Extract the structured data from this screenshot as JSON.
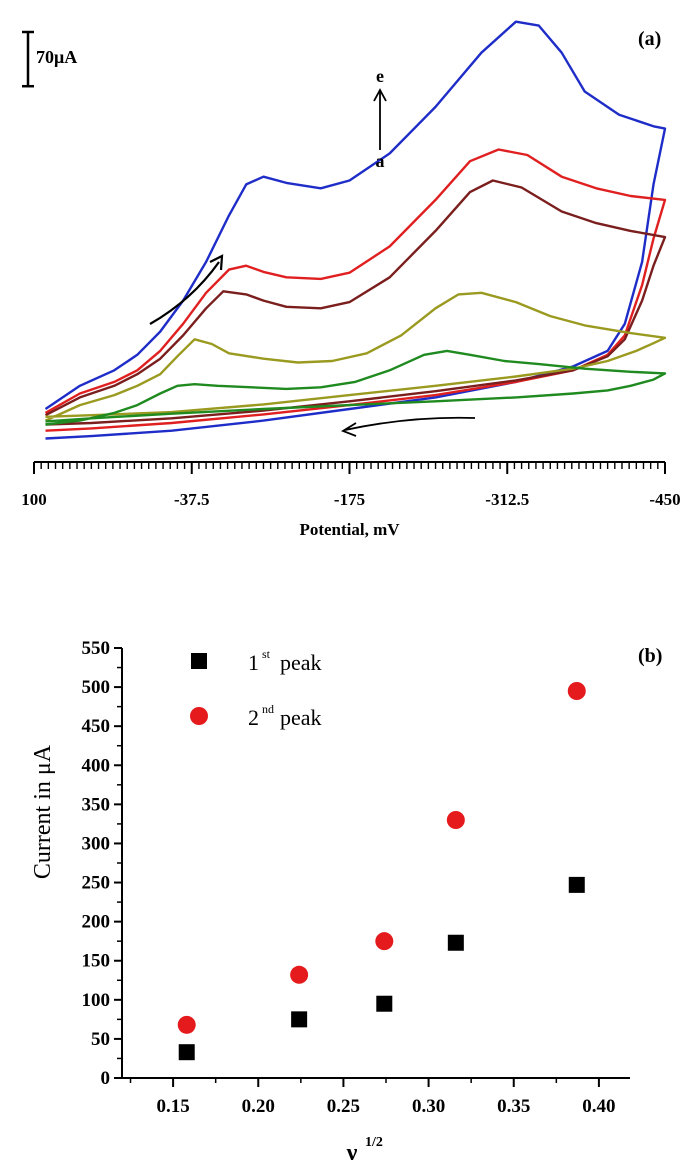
{
  "chart_data": [
    {
      "type": "line",
      "panel_label": "(a)",
      "xlabel": "Potential, mV",
      "x_reversed": true,
      "xlim": [
        100,
        -450
      ],
      "x_ticks": [
        "100",
        "-37.5",
        "-175",
        "-312.5",
        "-450"
      ],
      "x_tick_values": [
        100,
        -37.5,
        -175,
        -312.5,
        -450
      ],
      "scale_bar_label": "70μA",
      "scale_bar_value_uA": 70,
      "ylim_uA": [
        -30,
        520
      ],
      "arrow_top_label": "e",
      "arrow_bottom_label": "a",
      "series": [
        {
          "color": "#1f2dc8",
          "forward": [
            [
              90,
              10
            ],
            [
              60,
              40
            ],
            [
              30,
              60
            ],
            [
              10,
              80
            ],
            [
              -10,
              110
            ],
            [
              -30,
              150
            ],
            [
              -50,
              200
            ],
            [
              -70,
              260
            ],
            [
              -85,
              300
            ],
            [
              -100,
              310
            ],
            [
              -120,
              302
            ],
            [
              -150,
              295
            ],
            [
              -175,
              305
            ],
            [
              -210,
              340
            ],
            [
              -250,
              400
            ],
            [
              -290,
              470
            ],
            [
              -320,
              510
            ],
            [
              -340,
              505
            ],
            [
              -360,
              470
            ],
            [
              -380,
              420
            ],
            [
              -410,
              390
            ],
            [
              -440,
              375
            ],
            [
              -450,
              372
            ]
          ],
          "reverse": [
            [
              -450,
              372
            ],
            [
              -440,
              300
            ],
            [
              -430,
              200
            ],
            [
              -415,
              120
            ],
            [
              -400,
              85
            ],
            [
              -370,
              65
            ],
            [
              -320,
              45
            ],
            [
              -250,
              25
            ],
            [
              -175,
              10
            ],
            [
              -100,
              -5
            ],
            [
              -20,
              -18
            ],
            [
              50,
              -25
            ],
            [
              90,
              -28
            ]
          ]
        },
        {
          "color": "#e02020",
          "forward": [
            [
              90,
              5
            ],
            [
              60,
              30
            ],
            [
              30,
              45
            ],
            [
              10,
              60
            ],
            [
              -10,
              85
            ],
            [
              -30,
              120
            ],
            [
              -50,
              160
            ],
            [
              -70,
              190
            ],
            [
              -85,
              195
            ],
            [
              -100,
              187
            ],
            [
              -120,
              180
            ],
            [
              -150,
              178
            ],
            [
              -175,
              186
            ],
            [
              -210,
              220
            ],
            [
              -250,
              280
            ],
            [
              -280,
              330
            ],
            [
              -305,
              345
            ],
            [
              -330,
              338
            ],
            [
              -360,
              310
            ],
            [
              -390,
              295
            ],
            [
              -420,
              285
            ],
            [
              -450,
              280
            ]
          ],
          "reverse": [
            [
              -450,
              280
            ],
            [
              -440,
              230
            ],
            [
              -430,
              170
            ],
            [
              -415,
              105
            ],
            [
              -400,
              80
            ],
            [
              -370,
              60
            ],
            [
              -320,
              45
            ],
            [
              -250,
              28
            ],
            [
              -175,
              15
            ],
            [
              -100,
              3
            ],
            [
              -20,
              -8
            ],
            [
              50,
              -15
            ],
            [
              90,
              -18
            ]
          ]
        },
        {
          "color": "#7a1e1e",
          "forward": [
            [
              90,
              2
            ],
            [
              60,
              25
            ],
            [
              30,
              40
            ],
            [
              10,
              55
            ],
            [
              -10,
              75
            ],
            [
              -30,
              105
            ],
            [
              -50,
              140
            ],
            [
              -65,
              162
            ],
            [
              -85,
              158
            ],
            [
              -100,
              150
            ],
            [
              -120,
              142
            ],
            [
              -150,
              140
            ],
            [
              -175,
              148
            ],
            [
              -210,
              180
            ],
            [
              -250,
              240
            ],
            [
              -280,
              290
            ],
            [
              -300,
              305
            ],
            [
              -325,
              296
            ],
            [
              -360,
              265
            ],
            [
              -390,
              250
            ],
            [
              -420,
              240
            ],
            [
              -450,
              232
            ]
          ],
          "reverse": [
            [
              -450,
              232
            ],
            [
              -440,
              195
            ],
            [
              -430,
              150
            ],
            [
              -415,
              100
            ],
            [
              -400,
              78
            ],
            [
              -370,
              60
            ],
            [
              -320,
              47
            ],
            [
              -250,
              33
            ],
            [
              -175,
              20
            ],
            [
              -100,
              8
            ],
            [
              -20,
              -2
            ],
            [
              50,
              -8
            ],
            [
              90,
              -10
            ]
          ]
        },
        {
          "color": "#9a9a20",
          "forward": [
            [
              90,
              -5
            ],
            [
              60,
              15
            ],
            [
              30,
              28
            ],
            [
              10,
              40
            ],
            [
              -10,
              55
            ],
            [
              -25,
              78
            ],
            [
              -40,
              100
            ],
            [
              -55,
              94
            ],
            [
              -70,
              82
            ],
            [
              -100,
              75
            ],
            [
              -130,
              70
            ],
            [
              -160,
              72
            ],
            [
              -190,
              82
            ],
            [
              -220,
              105
            ],
            [
              -250,
              140
            ],
            [
              -270,
              158
            ],
            [
              -290,
              160
            ],
            [
              -320,
              148
            ],
            [
              -350,
              130
            ],
            [
              -380,
              118
            ],
            [
              -420,
              108
            ],
            [
              -450,
              102
            ]
          ],
          "reverse": [
            [
              -450,
              102
            ],
            [
              -440,
              95
            ],
            [
              -425,
              85
            ],
            [
              -400,
              72
            ],
            [
              -370,
              62
            ],
            [
              -320,
              52
            ],
            [
              -250,
              40
            ],
            [
              -175,
              28
            ],
            [
              -100,
              16
            ],
            [
              -20,
              6
            ],
            [
              50,
              2
            ],
            [
              90,
              0
            ]
          ]
        },
        {
          "color": "#1f8a1f",
          "forward": [
            [
              90,
              -10
            ],
            [
              60,
              -5
            ],
            [
              30,
              5
            ],
            [
              10,
              15
            ],
            [
              -10,
              30
            ],
            [
              -25,
              40
            ],
            [
              -40,
              42
            ],
            [
              -60,
              40
            ],
            [
              -90,
              38
            ],
            [
              -120,
              36
            ],
            [
              -150,
              38
            ],
            [
              -180,
              45
            ],
            [
              -210,
              60
            ],
            [
              -240,
              80
            ],
            [
              -260,
              85
            ],
            [
              -280,
              80
            ],
            [
              -310,
              72
            ],
            [
              -340,
              68
            ],
            [
              -380,
              62
            ],
            [
              -420,
              58
            ],
            [
              -450,
              56
            ]
          ],
          "reverse": [
            [
              -450,
              56
            ],
            [
              -440,
              48
            ],
            [
              -420,
              40
            ],
            [
              -400,
              34
            ],
            [
              -370,
              30
            ],
            [
              -320,
              25
            ],
            [
              -250,
              20
            ],
            [
              -175,
              15
            ],
            [
              -100,
              10
            ],
            [
              -20,
              4
            ],
            [
              50,
              -2
            ],
            [
              90,
              -6
            ]
          ]
        }
      ]
    },
    {
      "type": "scatter",
      "panel_label": "(b)",
      "xlabel": "ν",
      "xlabel_superscript": "1/2",
      "ylabel": "Current in μA",
      "xlim": [
        0.12,
        0.43
      ],
      "ylim": [
        0,
        550
      ],
      "x_ticks": [
        "0.15",
        "0.20",
        "0.25",
        "0.30",
        "0.35",
        "0.40"
      ],
      "x_tick_values": [
        0.15,
        0.2,
        0.25,
        0.3,
        0.35,
        0.4
      ],
      "y_ticks": [
        "0",
        "50",
        "100",
        "150",
        "200",
        "250",
        "300",
        "350",
        "400",
        "450",
        "500",
        "550"
      ],
      "y_tick_values": [
        0,
        50,
        100,
        150,
        200,
        250,
        300,
        350,
        400,
        450,
        500,
        550
      ],
      "legend_position": "top-left",
      "series": [
        {
          "name": "1",
          "name_superscript": "st",
          "name_suffix": " peak",
          "marker": "square",
          "color": "#000000",
          "x": [
            0.158,
            0.224,
            0.274,
            0.316,
            0.387
          ],
          "y": [
            33,
            75,
            95,
            173,
            247
          ]
        },
        {
          "name": "2",
          "name_superscript": "nd",
          "name_suffix": " peak",
          "marker": "circle",
          "color": "#e41a1c",
          "x": [
            0.158,
            0.224,
            0.274,
            0.316,
            0.387
          ],
          "y": [
            68,
            132,
            175,
            330,
            495
          ]
        }
      ]
    }
  ]
}
